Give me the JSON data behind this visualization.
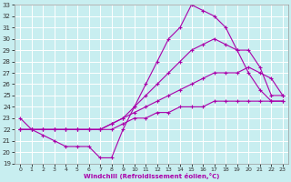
{
  "xlabel": "Windchill (Refroidissement éolien,°C)",
  "bg_color": "#c8eef0",
  "grid_color": "#ffffff",
  "line_color": "#aa00aa",
  "xlim": [
    -0.5,
    23.5
  ],
  "ylim": [
    19,
    33
  ],
  "yticks": [
    19,
    20,
    21,
    22,
    23,
    24,
    25,
    26,
    27,
    28,
    29,
    30,
    31,
    32,
    33
  ],
  "xticks": [
    0,
    1,
    2,
    3,
    4,
    5,
    6,
    7,
    8,
    9,
    10,
    11,
    12,
    13,
    14,
    15,
    16,
    17,
    18,
    19,
    20,
    21,
    22,
    23
  ],
  "lines": [
    {
      "x": [
        0,
        1,
        2,
        3,
        4,
        5,
        6,
        7,
        8,
        9,
        10,
        11,
        12,
        13,
        14,
        15,
        16,
        17,
        18,
        19,
        20,
        21,
        22,
        23
      ],
      "y": [
        22,
        22,
        22,
        22,
        22,
        22,
        22,
        22,
        22,
        22.5,
        23,
        23,
        23.5,
        23.5,
        24,
        24,
        24,
        24.5,
        24.5,
        24.5,
        24.5,
        24.5,
        24.5,
        24.5
      ]
    },
    {
      "x": [
        0,
        1,
        2,
        3,
        4,
        5,
        6,
        7,
        8,
        9,
        10,
        11,
        12,
        13,
        14,
        15,
        16,
        17,
        18,
        19,
        20,
        21,
        22,
        23
      ],
      "y": [
        22,
        22,
        22,
        22,
        22,
        22,
        22,
        22,
        22.5,
        23,
        23.5,
        24,
        24.5,
        25,
        25.5,
        26,
        26.5,
        27,
        27,
        27,
        27.5,
        27,
        26.5,
        25
      ]
    },
    {
      "x": [
        0,
        1,
        2,
        3,
        4,
        5,
        6,
        7,
        8,
        9,
        10,
        11,
        12,
        13,
        14,
        15,
        16,
        17,
        18,
        19,
        20,
        21,
        22,
        23
      ],
      "y": [
        22,
        22,
        22,
        22,
        22,
        22,
        22,
        22,
        22.5,
        23,
        24,
        25,
        26,
        27,
        28,
        29,
        29.5,
        30,
        29.5,
        29,
        29,
        27.5,
        25,
        25
      ]
    },
    {
      "x": [
        0,
        1,
        2,
        3,
        4,
        5,
        6,
        7,
        8,
        9,
        10,
        11,
        12,
        13,
        14,
        15,
        16,
        17,
        18,
        19,
        20,
        21,
        22,
        23
      ],
      "y": [
        23,
        22,
        21.5,
        21,
        20.5,
        20.5,
        20.5,
        19.5,
        19.5,
        22,
        24,
        26,
        28,
        30,
        31,
        33,
        32.5,
        32,
        31,
        29,
        27,
        25.5,
        24.5,
        24.5
      ]
    }
  ]
}
